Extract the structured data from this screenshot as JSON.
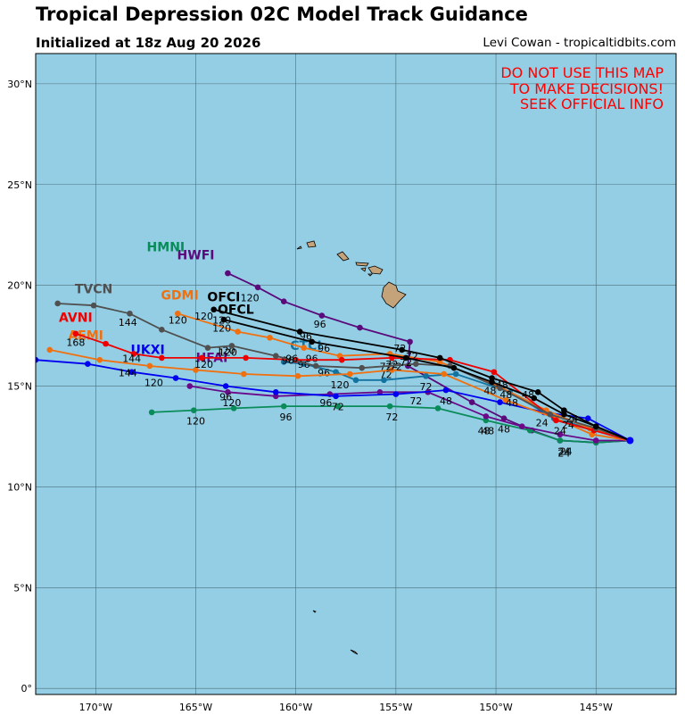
{
  "title": "Tropical Depression 02C Model Track Guidance",
  "subtitle": "Initialized at 18z Aug 20 2026",
  "credit": "Levi Cowan - tropicaltidbits.com",
  "warning": [
    "DO NOT USE THIS MAP",
    "TO MAKE DECISIONS!",
    "SEEK OFFICIAL INFO"
  ],
  "colors": {
    "ocean": "#94cee4",
    "land": "#c4a37a",
    "warning": "#ff0000"
  },
  "axes": {
    "lon_range": [
      -173,
      -141
    ],
    "lat_range": [
      -0.3,
      31.5
    ],
    "lon_ticks": [
      {
        "v": -170,
        "label": "170°W"
      },
      {
        "v": -165,
        "label": "165°W"
      },
      {
        "v": -160,
        "label": "160°W"
      },
      {
        "v": -155,
        "label": "155°W"
      },
      {
        "v": -150,
        "label": "150°W"
      },
      {
        "v": -145,
        "label": "145°W"
      }
    ],
    "lat_ticks": [
      {
        "v": 0,
        "label": "0°"
      },
      {
        "v": 5,
        "label": "5°N"
      },
      {
        "v": 10,
        "label": "10°N"
      },
      {
        "v": 15,
        "label": "15°N"
      },
      {
        "v": 20,
        "label": "20°N"
      },
      {
        "v": 25,
        "label": "25°N"
      },
      {
        "v": 30,
        "label": "30°N"
      }
    ],
    "grid": true
  },
  "chart_data": {
    "type": "map-tracks",
    "start_point": [
      -143.3,
      12.3
    ],
    "tracks": [
      {
        "name": "HWFI",
        "color": "#5a0a7a",
        "name_at": [
          -165,
          21.3
        ],
        "points": [
          [
            -143.3,
            12.3
          ],
          [
            -145,
            12.2
          ],
          [
            -146.8,
            12.3
          ],
          [
            -148.2,
            12.8
          ],
          [
            -149.6,
            13.4
          ],
          [
            -151.2,
            14.2
          ],
          [
            -153.5,
            15.5
          ],
          [
            -154.4,
            16.0
          ],
          [
            -154.3,
            17.2
          ],
          [
            -156.8,
            17.9
          ],
          [
            -158.7,
            18.5
          ],
          [
            -160.6,
            19.2
          ],
          [
            -161.9,
            19.9
          ],
          [
            -163.4,
            20.6
          ]
        ],
        "labels": [
          {
            "t": "24",
            "at": [
              -146.6,
              11.5
            ]
          },
          {
            "t": "48",
            "at": [
              -149.6,
              12.7
            ]
          },
          {
            "t": "72",
            "at": [
              -153.5,
              14.8
            ]
          },
          {
            "t": "96",
            "at": [
              -158.8,
              17.9
            ]
          },
          {
            "t": "120",
            "at": [
              -162.3,
              19.2
            ]
          }
        ]
      },
      {
        "name": "HMNI",
        "color": "#0a8c5a",
        "name_at": [
          -166.5,
          21.7
        ],
        "points": [
          [
            -143.3,
            12.3
          ],
          [
            -145,
            12.2
          ],
          [
            -146.8,
            12.3
          ],
          [
            -148.3,
            12.8
          ],
          [
            -150.5,
            13.3
          ],
          [
            -152.9,
            13.9
          ],
          [
            -155.3,
            14.0
          ],
          [
            -157.9,
            14.0
          ],
          [
            -160.6,
            14.0
          ],
          [
            -163.1,
            13.9
          ],
          [
            -165.1,
            13.8
          ],
          [
            -167.2,
            13.7
          ]
        ],
        "labels": [
          {
            "t": "24",
            "at": [
              -146.6,
              11.6
            ]
          },
          {
            "t": "48",
            "at": [
              -150.4,
              12.6
            ]
          },
          {
            "t": "72",
            "at": [
              -155.2,
              13.3
            ]
          },
          {
            "t": "96",
            "at": [
              -160.5,
              13.3
            ]
          },
          {
            "t": "120",
            "at": [
              -165.0,
              13.1
            ]
          }
        ]
      },
      {
        "name": "HFAI",
        "color": "#6a0a8a",
        "name_at": [
          -164.2,
          16.2
        ],
        "points": [
          [
            -143.3,
            12.3
          ],
          [
            -145,
            12.3
          ],
          [
            -146.8,
            12.6
          ],
          [
            -148.7,
            13.0
          ],
          [
            -150.5,
            13.5
          ],
          [
            -153.4,
            14.7
          ],
          [
            -155.8,
            14.7
          ],
          [
            -158.3,
            14.6
          ],
          [
            -161,
            14.5
          ],
          [
            -163.4,
            14.7
          ],
          [
            -165.3,
            15.0
          ]
        ],
        "labels": [
          {
            "t": "24",
            "at": [
              -146.5,
              11.6
            ]
          },
          {
            "t": "48",
            "at": [
              -150.6,
              12.6
            ]
          },
          {
            "t": "72",
            "at": [
              -154,
              14.1
            ]
          },
          {
            "t": "96",
            "at": [
              -158.5,
              14.0
            ]
          },
          {
            "t": "120",
            "at": [
              -163.2,
              14.0
            ]
          }
        ]
      },
      {
        "name": "UKXI",
        "color": "#0000f0",
        "name_at": [
          -167.4,
          16.6
        ],
        "points": [
          [
            -143.3,
            12.3
          ],
          [
            -145.4,
            13.4
          ],
          [
            -147.6,
            13.7
          ],
          [
            -149.8,
            14.2
          ],
          [
            -152.5,
            14.8
          ],
          [
            -155,
            14.6
          ],
          [
            -158,
            14.5
          ],
          [
            -161,
            14.7
          ],
          [
            -163.5,
            15.0
          ],
          [
            -166,
            15.4
          ],
          [
            -168.2,
            15.7
          ],
          [
            -170.4,
            16.1
          ],
          [
            -173,
            16.3
          ]
        ],
        "labels": [
          {
            "t": "24",
            "at": [
              -147.7,
              13.0
            ]
          },
          {
            "t": "48",
            "at": [
              -152.5,
              14.1
            ]
          },
          {
            "t": "72",
            "at": [
              -157.9,
              13.8
            ]
          },
          {
            "t": "96",
            "at": [
              -163.5,
              14.3
            ]
          },
          {
            "t": "120",
            "at": [
              -167.1,
              15.0
            ]
          },
          {
            "t": "144",
            "at": [
              -168.4,
              15.5
            ]
          }
        ]
      },
      {
        "name": "CTCI",
        "color": "#1272a0",
        "name_at": [
          -159.5,
          16.8
        ],
        "points": [
          [
            -143.3,
            12.3
          ],
          [
            -145.3,
            12.9
          ],
          [
            -147.1,
            13.4
          ],
          [
            -149.3,
            14.7
          ],
          [
            -152,
            15.6
          ],
          [
            -153.5,
            15.5
          ],
          [
            -155.6,
            15.3
          ],
          [
            -157,
            15.3
          ],
          [
            -158,
            15.7
          ],
          [
            -159.6,
            16.1
          ],
          [
            -160.6,
            16.2
          ]
        ],
        "labels": [
          {
            "t": "72",
            "at": [
              -155.5,
              15.4
            ]
          },
          {
            "t": "96",
            "at": [
              -158.6,
              15.5
            ]
          },
          {
            "t": "120",
            "at": [
              -157.8,
              14.9
            ]
          }
        ]
      },
      {
        "name": "GDMI",
        "color": "#f07010",
        "name_at": [
          -165.8,
          19.3
        ],
        "points": [
          [
            -143.3,
            12.3
          ],
          [
            -145.2,
            12.6
          ],
          [
            -147,
            13.4
          ],
          [
            -149.5,
            14.3
          ],
          [
            -152.6,
            15.6
          ],
          [
            -155.2,
            15.8
          ],
          [
            -157.3,
            15.6
          ],
          [
            -159.9,
            15.5
          ],
          [
            -162.6,
            15.6
          ],
          [
            -165,
            15.8
          ],
          [
            -167.3,
            16.0
          ],
          [
            -169.8,
            16.3
          ],
          [
            -172.3,
            16.8
          ]
        ],
        "labels": [
          {
            "t": "24",
            "at": [
              -146.8,
              12.6
            ]
          },
          {
            "t": "48",
            "at": [
              -150.3,
              14.6
            ]
          },
          {
            "t": "72",
            "at": [
              -155.5,
              15.8
            ]
          },
          {
            "t": "96",
            "at": [
              -159.6,
              15.9
            ]
          },
          {
            "t": "120",
            "at": [
              -163.5,
              16.6
            ]
          }
        ]
      },
      {
        "name": "AEMI",
        "color": "#f07010",
        "name_at": [
          -170.5,
          17.3
        ],
        "points": [
          [
            -143.3,
            12.3
          ],
          [
            -145.3,
            12.9
          ],
          [
            -147.5,
            13.8
          ],
          [
            -149.9,
            15.0
          ],
          [
            -152.8,
            16.2
          ],
          [
            -155.3,
            16.6
          ],
          [
            -157.8,
            16.5
          ],
          [
            -159.6,
            16.9
          ],
          [
            -161.3,
            17.4
          ],
          [
            -162.9,
            17.7
          ],
          [
            -165.9,
            18.6
          ]
        ],
        "labels": [
          {
            "t": "120",
            "at": [
              -165.9,
              18.1
            ]
          },
          {
            "t": "120",
            "at": [
              -164.6,
              18.3
            ]
          },
          {
            "t": "96",
            "at": [
              -159.2,
              16.2
            ]
          },
          {
            "t": "72",
            "at": [
              -155.2,
              15.9
            ]
          }
        ]
      },
      {
        "name": "AVNI",
        "color": "#ee0000",
        "name_at": [
          -171,
          18.2
        ],
        "points": [
          [
            -143.3,
            12.3
          ],
          [
            -145.1,
            12.8
          ],
          [
            -147,
            13.3
          ],
          [
            -150.1,
            15.7
          ],
          [
            -152.3,
            16.3
          ],
          [
            -155.2,
            16.4
          ],
          [
            -157.7,
            16.3
          ],
          [
            -160,
            16.3
          ],
          [
            -162.5,
            16.4
          ],
          [
            -164.7,
            16.4
          ],
          [
            -166.7,
            16.4
          ],
          [
            -168.1,
            16.6
          ],
          [
            -169.5,
            17.1
          ],
          [
            -171,
            17.6
          ]
        ],
        "labels": [
          {
            "t": "48",
            "at": [
              -149.7,
              14.9
            ]
          },
          {
            "t": "72",
            "at": [
              -155,
              15.8
            ]
          },
          {
            "t": "96",
            "at": [
              -160.4,
              16.1
            ]
          },
          {
            "t": "120",
            "at": [
              -164.6,
              15.9
            ]
          },
          {
            "t": "144",
            "at": [
              -168.2,
              16.2
            ]
          },
          {
            "t": "168",
            "at": [
              -171,
              17.0
            ]
          }
        ]
      },
      {
        "name": "TVCN",
        "color": "#505050",
        "name_at": [
          -170.1,
          19.6
        ],
        "points": [
          [
            -143.3,
            12.3
          ],
          [
            -145,
            12.9
          ],
          [
            -147.3,
            13.6
          ],
          [
            -149.8,
            14.9
          ],
          [
            -152.3,
            16.0
          ],
          [
            -154,
            16.1
          ],
          [
            -156.7,
            15.9
          ],
          [
            -159,
            16.0
          ],
          [
            -161,
            16.5
          ],
          [
            -163.2,
            17.0
          ],
          [
            -164.4,
            16.9
          ],
          [
            -166.7,
            17.8
          ],
          [
            -168.3,
            18.6
          ],
          [
            -170.1,
            19.0
          ],
          [
            -171.9,
            19.1
          ]
        ],
        "labels": [
          {
            "t": "48",
            "at": [
              -148.4,
              14.4
            ]
          },
          {
            "t": "72",
            "at": [
              -154.8,
              16.7
            ]
          },
          {
            "t": "96",
            "at": [
              -160.2,
              16.2
            ]
          },
          {
            "t": "120",
            "at": [
              -163.4,
              16.5
            ]
          },
          {
            "t": "144",
            "at": [
              -168.4,
              18.0
            ]
          }
        ]
      },
      {
        "name": "OFCI",
        "color": "#000000",
        "name_at": [
          -163.6,
          19.2
        ],
        "points": [
          [
            -143.3,
            12.3
          ],
          [
            -145,
            13.0
          ],
          [
            -146.6,
            13.8
          ],
          [
            -147.9,
            14.7
          ],
          [
            -150.2,
            15.4
          ],
          [
            -152.8,
            16.4
          ],
          [
            -154.7,
            16.8
          ],
          [
            -159.8,
            17.7
          ],
          [
            -164.1,
            18.8
          ]
        ],
        "labels": [
          {
            "t": "24",
            "at": [
              -146.2,
              13.2
            ]
          },
          {
            "t": "48",
            "at": [
              -149.5,
              14.4
            ]
          },
          {
            "t": "72",
            "at": [
              -154.2,
              16.3
            ]
          },
          {
            "t": "96",
            "at": [
              -159.5,
              17.3
            ]
          },
          {
            "t": "120",
            "at": [
              -163.7,
              18.1
            ]
          }
        ]
      },
      {
        "name": "OFCL",
        "color": "#000000",
        "name_at": [
          -163,
          18.6
        ],
        "points": [
          [
            -143.3,
            12.3
          ],
          [
            -145,
            13.0
          ],
          [
            -146.6,
            13.6
          ],
          [
            -148.1,
            14.4
          ],
          [
            -150.2,
            15.2
          ],
          [
            -152.1,
            15.9
          ],
          [
            -154.5,
            16.4
          ],
          [
            -159.2,
            17.2
          ],
          [
            -163.6,
            18.3
          ]
        ],
        "labels": [
          {
            "t": "24",
            "at": [
              -146.4,
              12.9
            ]
          },
          {
            "t": "48",
            "at": [
              -149.2,
              14.0
            ]
          },
          {
            "t": "72",
            "at": [
              -154.5,
              16.0
            ]
          },
          {
            "t": "96",
            "at": [
              -158.6,
              16.7
            ]
          },
          {
            "t": "120",
            "at": [
              -163.7,
              17.7
            ]
          }
        ]
      }
    ]
  }
}
